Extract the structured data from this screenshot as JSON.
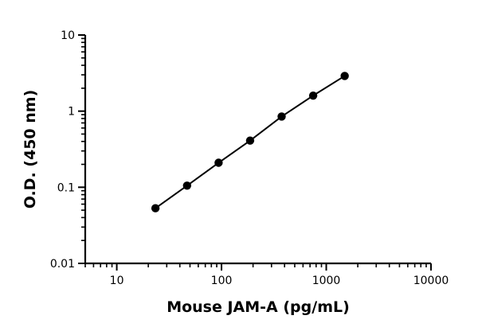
{
  "chart_data": {
    "type": "scatter",
    "title": "",
    "xlabel": "Mouse JAM-A (pg/mL)",
    "ylabel": "O.D. (450 nm)",
    "x_scale": "log",
    "y_scale": "log",
    "xlim": [
      5,
      10000
    ],
    "ylim": [
      0.01,
      10
    ],
    "x_ticks": [
      {
        "value": 10,
        "label": "10"
      },
      {
        "value": 100,
        "label": "100"
      },
      {
        "value": 1000,
        "label": "1000"
      },
      {
        "value": 10000,
        "label": "10000"
      }
    ],
    "y_ticks": [
      {
        "value": 0.01,
        "label": "0.01"
      },
      {
        "value": 0.1,
        "label": "0.1"
      },
      {
        "value": 1,
        "label": "1"
      },
      {
        "value": 10,
        "label": "10"
      }
    ],
    "grid": false,
    "legend": "none",
    "series": [
      {
        "x": [
          23.4,
          46.9,
          93.8,
          187.5,
          375,
          750,
          1500
        ],
        "y": [
          0.053,
          0.105,
          0.21,
          0.41,
          0.85,
          1.6,
          2.9
        ],
        "marker": "circle",
        "color": "#000000",
        "fit_line": true
      }
    ]
  }
}
